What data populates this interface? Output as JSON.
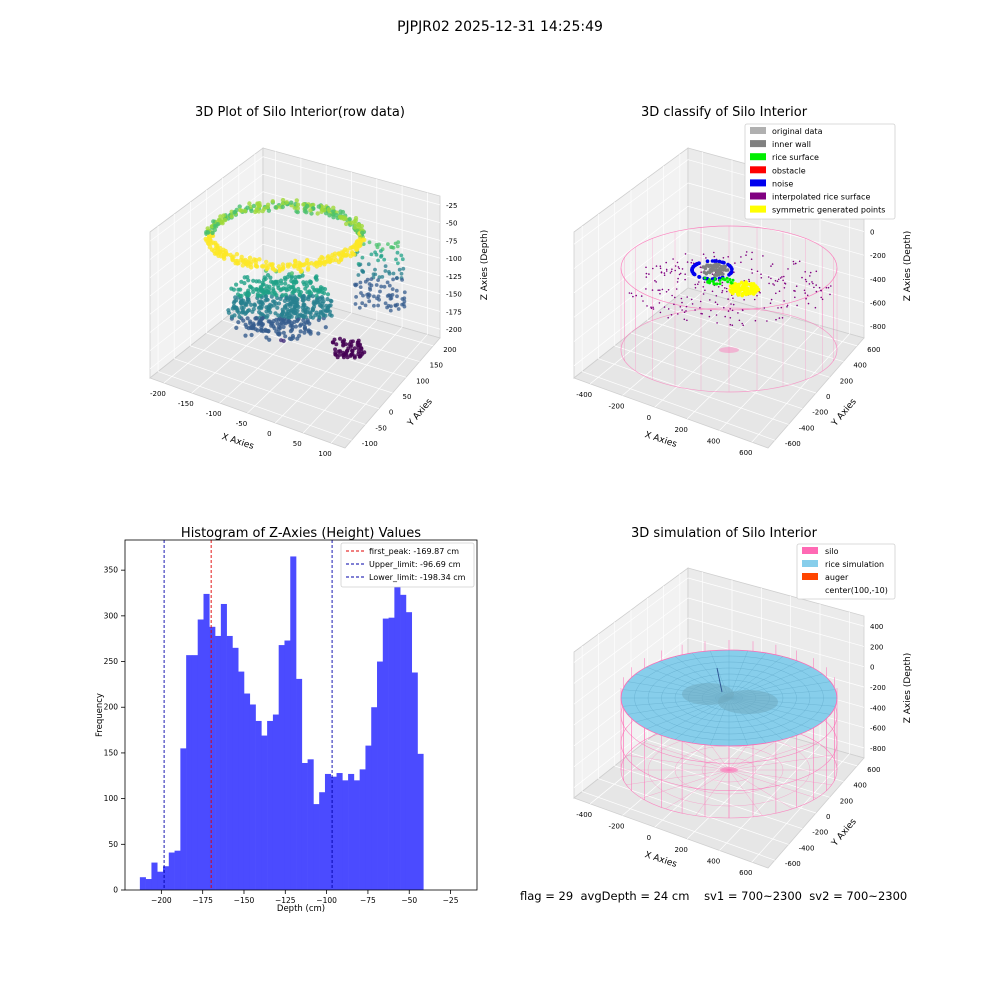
{
  "suptitle": "PJPJR02 2025-12-31 14:25:49",
  "status": {
    "flag": "flag = 29",
    "avg_depth": "avgDepth = 24 cm",
    "sv1": "sv1 = 700~2300",
    "sv2": "sv2 = 700~2300"
  },
  "colors": {
    "hist_bar": "#4b4bff",
    "first_peak": "#e00000",
    "limit": "#0000aa",
    "silo": "#ff69b4",
    "rice_simulation": "#87ceeb",
    "auger": "#ff4500",
    "original_data": "#b0b0b0",
    "inner_wall": "#808080",
    "rice_surface": "#00ee00",
    "obstacle": "#ff0000",
    "noise": "#0000ee",
    "interpolated_rice_surface": "#800080",
    "symmetric_generated_points": "#ffff00"
  },
  "chart_data": [
    {
      "type": "scatter",
      "title": "3D Plot of Silo Interior(row data)",
      "xlabel": "X Axies",
      "ylabel": "Y Axies",
      "zlabel": "Z Axies (Depth)",
      "x_ticks": [
        "-200",
        "-150",
        "-100",
        "-50",
        "0",
        "50",
        "100"
      ],
      "y_ticks": [
        "-100",
        "-50",
        "0",
        "50",
        "100",
        "150",
        "200"
      ],
      "z_ticks": [
        "-25",
        "-50",
        "-75",
        "-100",
        "-125",
        "-150",
        "-175",
        "-200"
      ],
      "colormap": "viridis"
    },
    {
      "type": "scatter",
      "title": "3D classify of Silo Interior",
      "xlabel": "X Axies",
      "ylabel": "Y Axies",
      "zlabel": "Z Axies (Depth)",
      "x_ticks": [
        "-400",
        "-200",
        "0",
        "200",
        "400",
        "600"
      ],
      "y_ticks": [
        "-600",
        "-400",
        "-200",
        "0",
        "200",
        "400",
        "600"
      ],
      "z_ticks": [
        "200",
        "0",
        "-200",
        "-400",
        "-600",
        "-800"
      ],
      "legend": [
        "original data",
        "inner wall",
        "rice surface",
        "obstacle",
        "noise",
        "interpolated rice surface",
        "symmetric generated points"
      ],
      "legend_position": "top-right"
    },
    {
      "type": "bar",
      "title": "Histogram of Z-Axies (Height) Values",
      "xlabel": "Depth (cm)",
      "ylabel": "Frequency",
      "xlim": [
        -222,
        -9
      ],
      "ylim": [
        0,
        383
      ],
      "x_ticks": [
        -200,
        -175,
        -150,
        -125,
        -100,
        -75,
        -50,
        -25
      ],
      "y_ticks": [
        0,
        50,
        100,
        150,
        200,
        250,
        300,
        350
      ],
      "bin_start": -213,
      "bin_width": 3.5,
      "values": [
        14,
        12,
        30,
        20,
        26,
        41,
        43,
        155,
        257,
        257,
        296,
        324,
        288,
        278,
        313,
        278,
        265,
        239,
        215,
        203,
        185,
        169,
        185,
        192,
        268,
        273,
        365,
        231,
        139,
        143,
        94,
        107,
        127,
        124,
        128,
        120,
        127,
        120,
        132,
        158,
        200,
        250,
        297,
        298,
        335,
        323,
        304,
        238,
        149
      ],
      "vlines": [
        {
          "label": "first_peak: -169.87 cm",
          "x": -169.87,
          "color_key": "first_peak"
        },
        {
          "label": "Upper_limit: -96.69 cm",
          "x": -96.69,
          "color_key": "limit"
        },
        {
          "label": "Lower_limit: -198.34 cm",
          "x": -198.34,
          "color_key": "limit"
        }
      ],
      "legend_position": "top-right"
    },
    {
      "type": "scatter",
      "title": "3D simulation of Silo Interior",
      "xlabel": "X Axies",
      "ylabel": "Y Axies",
      "zlabel": "Z Axies (Depth)",
      "x_ticks": [
        "-400",
        "-200",
        "0",
        "200",
        "400",
        "600"
      ],
      "y_ticks": [
        "-600",
        "-400",
        "-200",
        "0",
        "200",
        "400",
        "600"
      ],
      "z_ticks": [
        "400",
        "200",
        "0",
        "-200",
        "-400",
        "-600",
        "-800"
      ],
      "legend": [
        "silo",
        "rice simulation",
        "auger",
        "center(100,-10)"
      ],
      "legend_position": "top-right"
    }
  ]
}
